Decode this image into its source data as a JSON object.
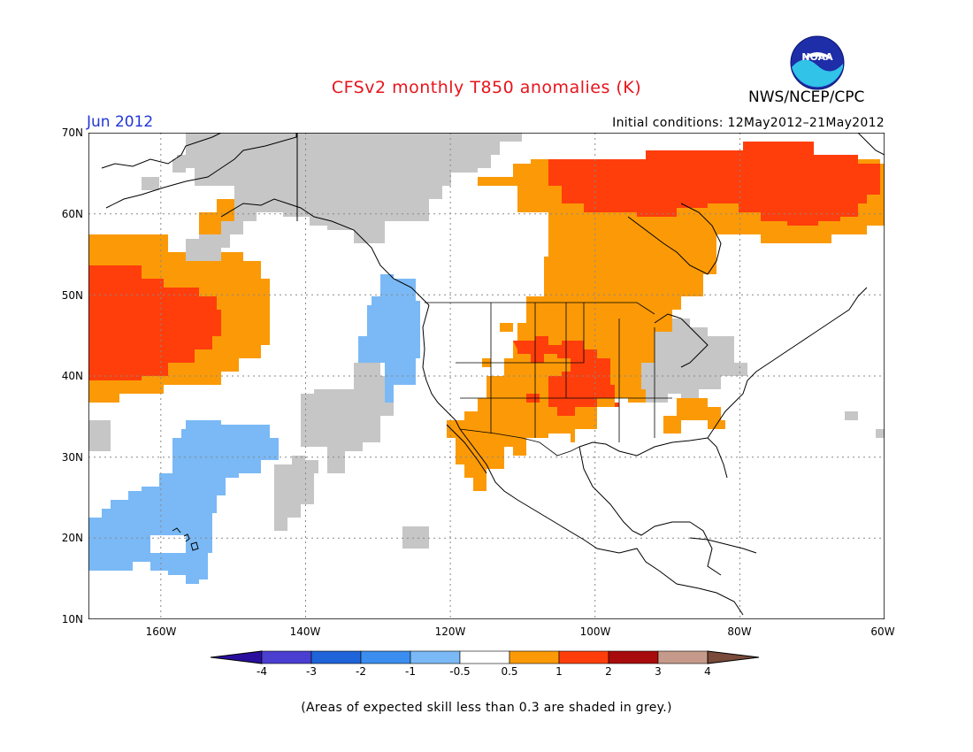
{
  "title": "CFSv2 monthly T850 anomalies (K)",
  "period": "Jun 2012",
  "initial_conditions": "Initial conditions: 12May2012–21May2012",
  "organization": "NWS/NCEP/CPC",
  "logo_text": "NOAA",
  "note": "(Areas of expected skill less than 0.3 are shaded in grey.)",
  "lat_labels": [
    "70N",
    "60N",
    "50N",
    "40N",
    "30N",
    "20N",
    "10N"
  ],
  "lon_labels": [
    "160W",
    "140W",
    "120W",
    "100W",
    "80W",
    "60W"
  ],
  "colorbar": {
    "labels": [
      "-4",
      "-3",
      "-2",
      "-1",
      "-0.5",
      "0.5",
      "1",
      "2",
      "3",
      "4"
    ],
    "colors": [
      "#2a0f9e",
      "#4a3fd0",
      "#1f64d8",
      "#3b8ef0",
      "#7ab9f6",
      "#ffffff",
      "#fb9a06",
      "#ff3e0c",
      "#a80b0b",
      "#c69a8a",
      "#7a4a3a"
    ]
  },
  "map_colors": {
    "grey": "#c6c6c6",
    "orange": "#fb9a06",
    "red": "#ff3e0c",
    "light_blue": "#7ab9f6",
    "grid": "#888888",
    "coast": "#000000"
  }
}
